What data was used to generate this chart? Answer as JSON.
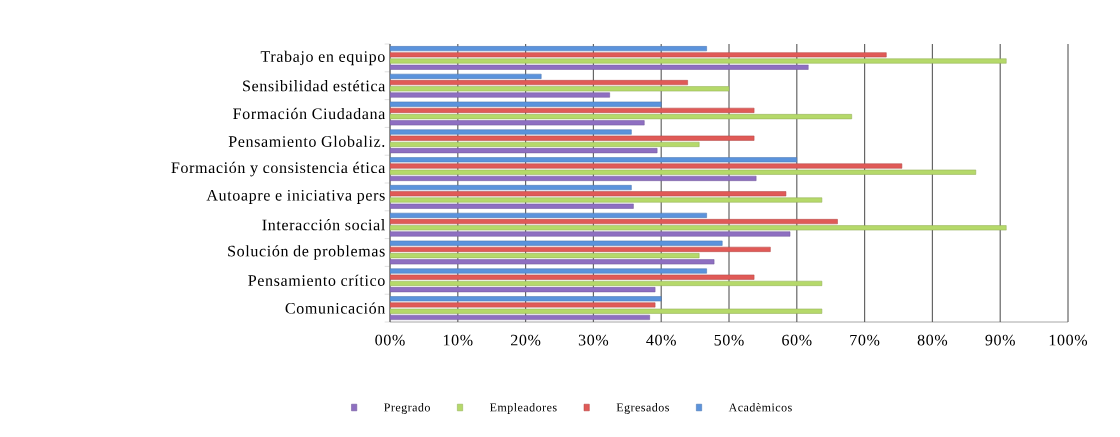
{
  "chart_data": {
    "type": "bar",
    "orientation": "horizontal",
    "categories": [
      "Trabajo en equipo",
      "Sensibilidad estética",
      "Formación Ciudadana",
      "Pensamiento Globaliz.",
      "Formación y consistencia ética",
      "Autoapre  e iniciativa pers",
      "Interacción social",
      "Solución de problemas",
      "Pensamiento crítico",
      "Comunicación"
    ],
    "series": [
      {
        "name": "Pregrado",
        "color": "#8e6fc1",
        "values": [
          61.7,
          32.4,
          37.5,
          39.4,
          54.0,
          35.9,
          59.0,
          47.8,
          39.1,
          38.3
        ]
      },
      {
        "name": "Empleadores",
        "color": "#b5d96a",
        "values": [
          90.9,
          50.0,
          68.1,
          45.6,
          86.4,
          63.7,
          90.9,
          45.6,
          63.7,
          63.7
        ]
      },
      {
        "name": "Egresados",
        "color": "#e05a57",
        "values": [
          73.2,
          43.9,
          53.7,
          53.7,
          75.5,
          58.4,
          66.0,
          56.1,
          53.7,
          39.1
        ]
      },
      {
        "name": "Acadèmicos",
        "color": "#5b93dc",
        "values": [
          46.7,
          22.3,
          40.0,
          35.6,
          60.0,
          35.6,
          46.7,
          49.0,
          46.7,
          40.0
        ]
      }
    ],
    "xlim": [
      0,
      100
    ],
    "xticks": [
      {
        "value": 0,
        "label": "00%"
      },
      {
        "value": 10,
        "label": "10%"
      },
      {
        "value": 20,
        "label": "20%"
      },
      {
        "value": 30,
        "label": "30%"
      },
      {
        "value": 40,
        "label": "40%"
      },
      {
        "value": 50,
        "label": "50%"
      },
      {
        "value": 60,
        "label": "60%"
      },
      {
        "value": 70,
        "label": "70%"
      },
      {
        "value": 80,
        "label": "80%"
      },
      {
        "value": 90,
        "label": "90%"
      },
      {
        "value": 100,
        "label": "100%"
      }
    ],
    "grid": "x",
    "legend": "bottom"
  }
}
